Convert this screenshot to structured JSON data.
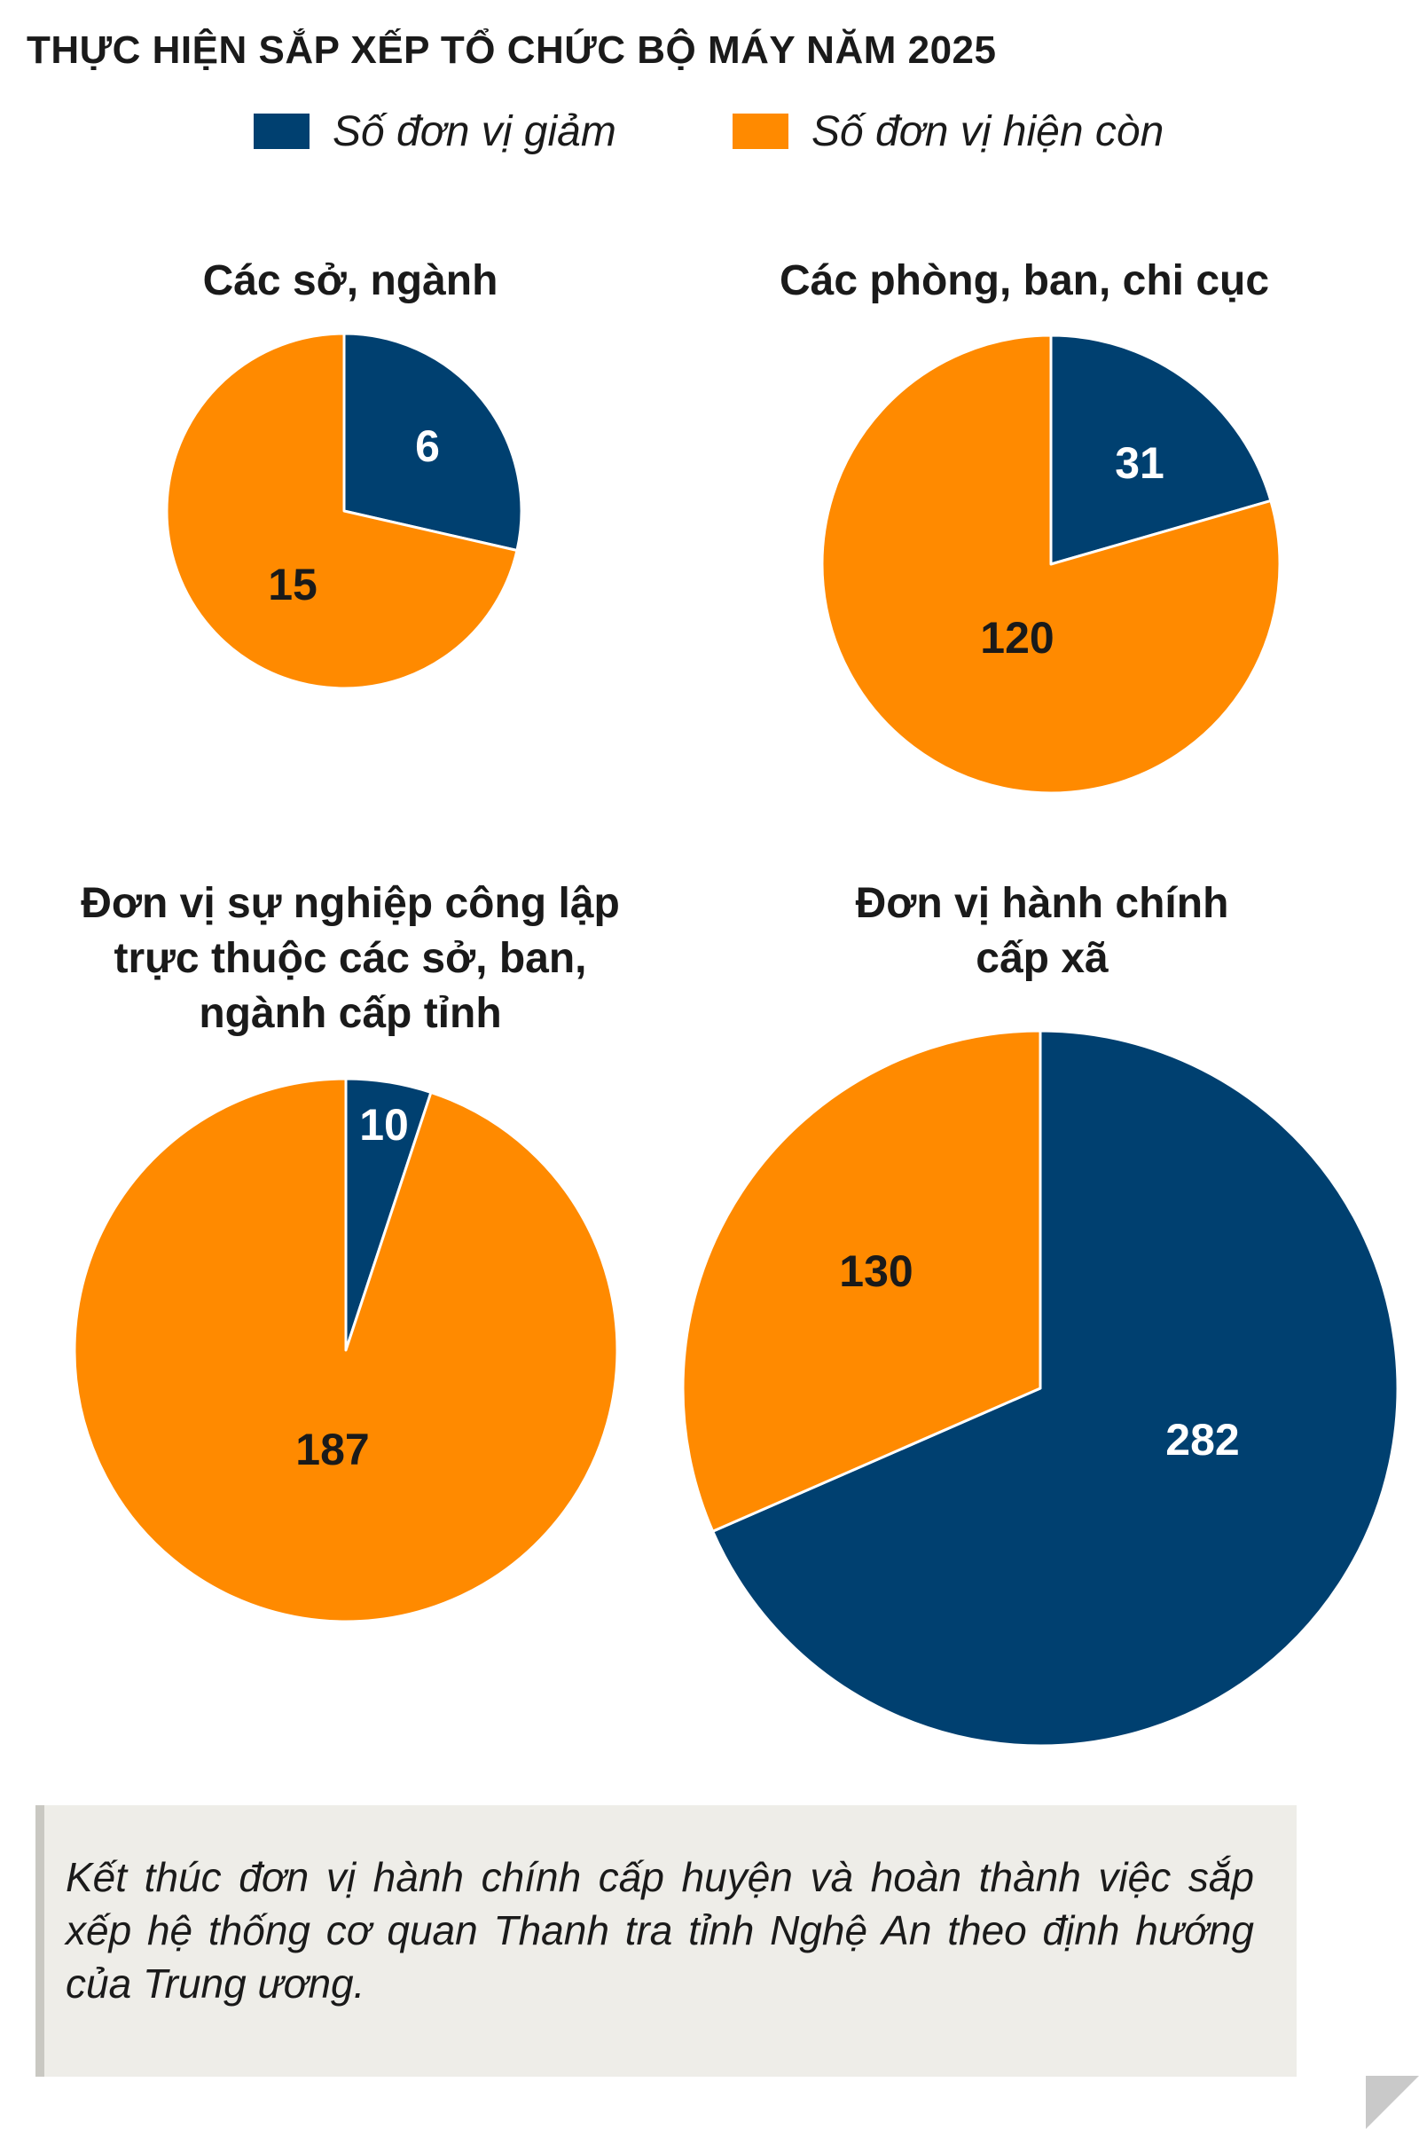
{
  "title": "THỰC HIỆN SẮP XẾP TỔ CHỨC BỘ MÁY NĂM 2025",
  "legend": [
    {
      "label": "Số đơn vị giảm",
      "color": "#004070"
    },
    {
      "label": "Số đơn vị hiện còn",
      "color": "#ff8a00"
    }
  ],
  "chart_data": [
    {
      "type": "pie",
      "title": "Các sở, ngành",
      "series": [
        {
          "name": "Số đơn vị giảm",
          "value": 6
        },
        {
          "name": "Số đơn vị hiện còn",
          "value": 15
        }
      ]
    },
    {
      "type": "pie",
      "title": "Các phòng, ban, chi cục",
      "series": [
        {
          "name": "Số đơn vị giảm",
          "value": 31
        },
        {
          "name": "Số đơn vị hiện còn",
          "value": 120
        }
      ]
    },
    {
      "type": "pie",
      "title": "Đơn vị sự nghiệp công lập\ntrực thuộc các sở, ban,\nngành cấp tỉnh",
      "series": [
        {
          "name": "Số đơn vị giảm",
          "value": 10
        },
        {
          "name": "Số đơn vị hiện còn",
          "value": 187
        }
      ]
    },
    {
      "type": "pie",
      "title": "Đơn vị hành chính\ncấp xã",
      "series": [
        {
          "name": "Số đơn vị giảm",
          "value": 282
        },
        {
          "name": "Số đơn vị hiện còn",
          "value": 130
        }
      ]
    }
  ],
  "note": "Kết thúc đơn vị hành chính cấp huyện và hoàn thành việc sắp xếp hệ thống cơ quan Thanh tra tỉnh Nghệ An theo định hướng của Trung ương."
}
